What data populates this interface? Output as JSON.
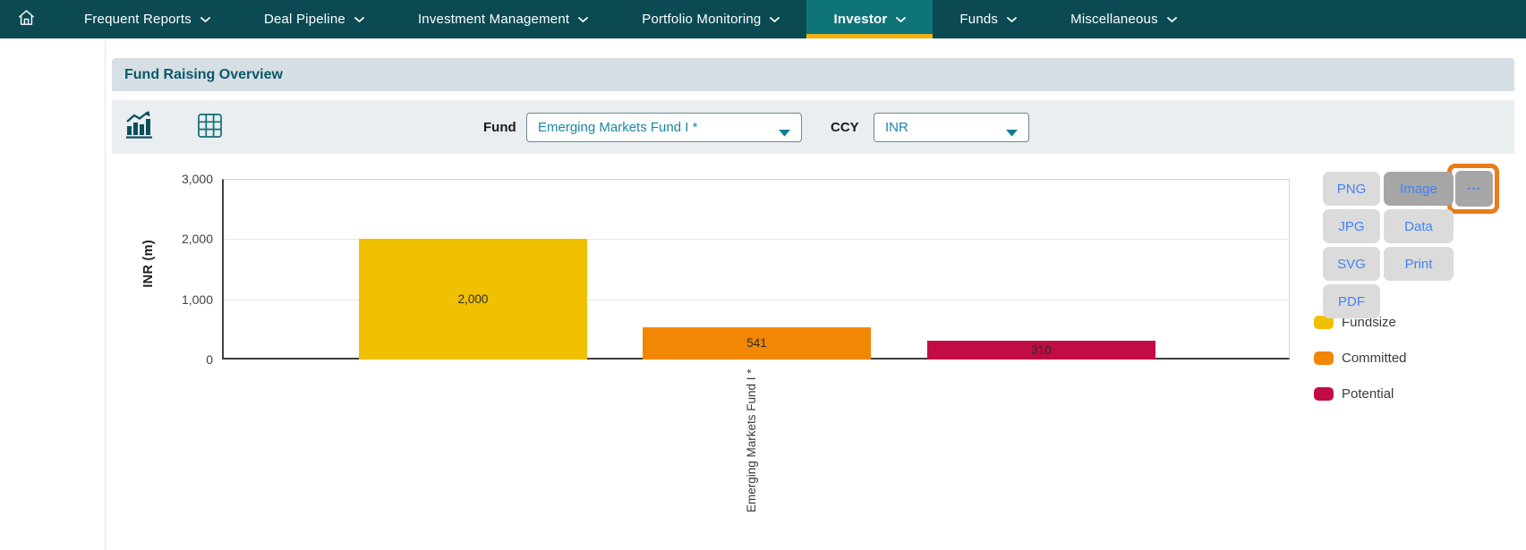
{
  "nav": {
    "home_icon": "home-icon",
    "items": [
      {
        "label": "Frequent Reports",
        "active": false
      },
      {
        "label": "Deal Pipeline",
        "active": false
      },
      {
        "label": "Investment Management",
        "active": false
      },
      {
        "label": "Portfolio Monitoring",
        "active": false
      },
      {
        "label": "Investor",
        "active": true
      },
      {
        "label": "Funds",
        "active": false
      },
      {
        "label": "Miscellaneous",
        "active": false
      }
    ]
  },
  "panel": {
    "title": "Fund Raising Overview"
  },
  "toolbar": {
    "view_icons": [
      "bar-chart-icon",
      "table-icon"
    ],
    "fund_label": "Fund",
    "fund_value": "Emerging Markets Fund I *",
    "ccy_label": "CCY",
    "ccy_value": "INR"
  },
  "export_menu": {
    "more_label": "...",
    "column1": [
      "PNG",
      "JPG",
      "SVG",
      "PDF"
    ],
    "column2": [
      "Image",
      "Data",
      "Print"
    ],
    "hovered_item": "Image"
  },
  "chart_data": {
    "type": "bar",
    "categories": [
      "Emerging Markets Fund I *"
    ],
    "series": [
      {
        "name": "Fundsize",
        "values": [
          2000
        ],
        "color": "#F0C001"
      },
      {
        "name": "Committed",
        "values": [
          541
        ],
        "color": "#F28705"
      },
      {
        "name": "Potential",
        "values": [
          310
        ],
        "color": "#C20C44"
      }
    ],
    "bar_labels": [
      "2,000",
      "541",
      "310"
    ],
    "ylabel": "INR (m)",
    "ylim": [
      0,
      3000
    ],
    "yticks": [
      "0",
      "1,000",
      "2,000",
      "3,000"
    ],
    "grid": true,
    "legend_position": "right"
  },
  "colors": {
    "nav_background": "#0B4A52",
    "nav_active_tab": "#0F7478",
    "nav_active_underline": "#F2B211",
    "panel_header_background": "#D6DFE3",
    "panel_header_text": "#09586C",
    "toolbar_background": "#E9EEF1",
    "select_text": "#1B87A5",
    "export_button_background": "#DBDBDB",
    "export_button_hover": "#A6A6A6",
    "export_link_blue": "#4283F5",
    "highlight_orange": "#E87C18"
  }
}
